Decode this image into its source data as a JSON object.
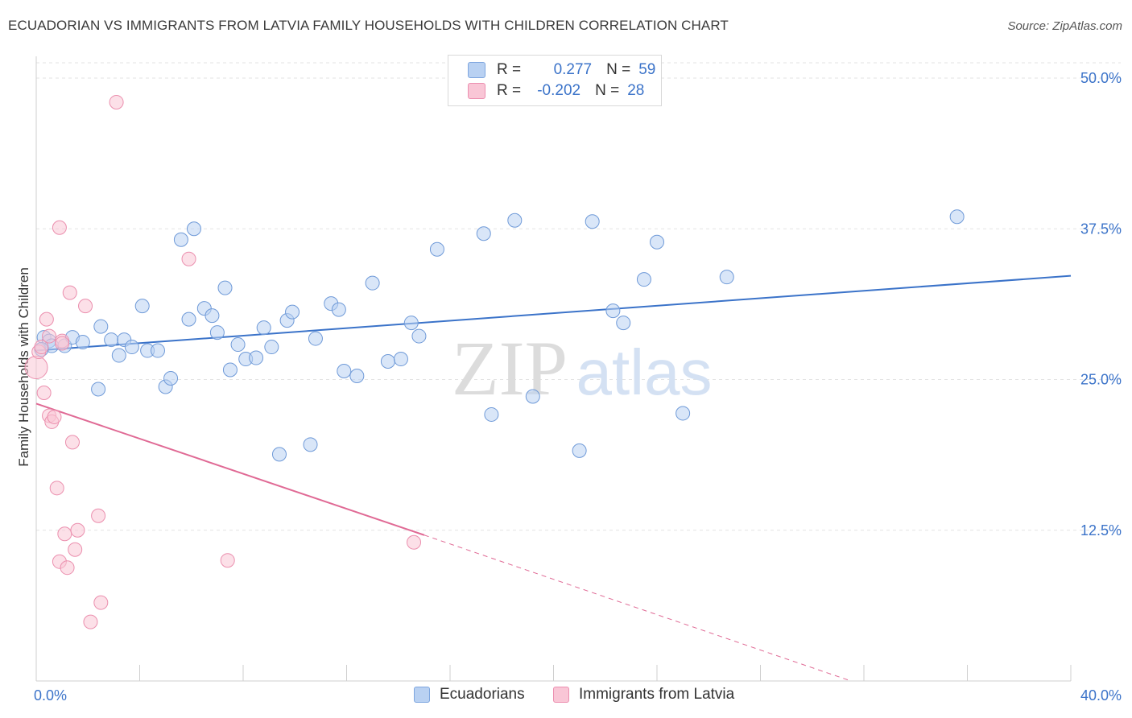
{
  "header": {
    "title": "ECUADORIAN VS IMMIGRANTS FROM LATVIA FAMILY HOUSEHOLDS WITH CHILDREN CORRELATION CHART",
    "source": "Source: ZipAtlas.com"
  },
  "watermark": {
    "zip": "ZIP",
    "atlas": "atlas"
  },
  "legend": {
    "rows": [
      {
        "r_label": "R =",
        "r_value": "0.277",
        "n_label": "N =",
        "n_value": "59",
        "color": "#b9d1f2",
        "border": "#7ea6df"
      },
      {
        "r_label": "R =",
        "r_value": "-0.202",
        "n_label": "N =",
        "n_value": "28",
        "color": "#f9c6d6",
        "border": "#ec8fb0"
      }
    ]
  },
  "bottom_legend": {
    "items": [
      {
        "label": "Ecuadorians",
        "color": "#b9d1f2",
        "border": "#7ea6df"
      },
      {
        "label": "Immigrants from Latvia",
        "color": "#f9c6d6",
        "border": "#ec8fb0"
      }
    ]
  },
  "chart_data": {
    "type": "scatter",
    "ylabel": "Family Households with Children",
    "xlim": [
      0,
      40
    ],
    "ylim": [
      0,
      50
    ],
    "x_ticks": [
      {
        "value": 0,
        "label": "0.0%"
      },
      {
        "value": 40,
        "label": "40.0%"
      }
    ],
    "y_ticks": [
      {
        "value": 12.5,
        "label": "12.5%"
      },
      {
        "value": 25,
        "label": "25.0%"
      },
      {
        "value": 37.5,
        "label": "37.5%"
      },
      {
        "value": 50,
        "label": "50.0%"
      }
    ],
    "grid": true,
    "series": [
      {
        "name": "Ecuadorians",
        "color": "#b9d1f2",
        "stroke": "#6f9ad8",
        "line_color": "#3b73c9",
        "trend": {
          "x0": 0,
          "y0": 27.4,
          "x1": 40,
          "y1": 33.6
        },
        "points": [
          [
            0.3,
            28.5
          ],
          [
            0.5,
            28.2
          ],
          [
            0.6,
            27.8
          ],
          [
            1.1,
            27.8
          ],
          [
            1.4,
            28.5
          ],
          [
            1.8,
            28.1
          ],
          [
            2.4,
            24.2
          ],
          [
            2.5,
            29.4
          ],
          [
            2.9,
            28.3
          ],
          [
            3.2,
            27.0
          ],
          [
            3.4,
            28.3
          ],
          [
            3.7,
            27.7
          ],
          [
            4.1,
            31.1
          ],
          [
            4.3,
            27.4
          ],
          [
            4.7,
            27.4
          ],
          [
            5.0,
            24.4
          ],
          [
            5.2,
            25.1
          ],
          [
            5.6,
            36.6
          ],
          [
            5.9,
            30.0
          ],
          [
            6.1,
            37.5
          ],
          [
            6.5,
            30.9
          ],
          [
            6.8,
            30.3
          ],
          [
            7.0,
            28.9
          ],
          [
            7.3,
            32.6
          ],
          [
            7.5,
            25.8
          ],
          [
            7.8,
            27.9
          ],
          [
            8.1,
            26.7
          ],
          [
            8.5,
            26.8
          ],
          [
            8.8,
            29.3
          ],
          [
            9.1,
            27.7
          ],
          [
            9.4,
            18.8
          ],
          [
            9.7,
            29.9
          ],
          [
            9.9,
            30.6
          ],
          [
            10.6,
            19.6
          ],
          [
            10.8,
            28.4
          ],
          [
            11.4,
            31.3
          ],
          [
            11.7,
            30.8
          ],
          [
            11.9,
            25.7
          ],
          [
            12.4,
            25.3
          ],
          [
            13.0,
            33.0
          ],
          [
            13.6,
            26.5
          ],
          [
            14.1,
            26.7
          ],
          [
            14.5,
            29.7
          ],
          [
            14.8,
            28.6
          ],
          [
            15.5,
            35.8
          ],
          [
            17.3,
            37.1
          ],
          [
            17.6,
            22.1
          ],
          [
            18.5,
            38.2
          ],
          [
            19.2,
            23.6
          ],
          [
            21.0,
            19.1
          ],
          [
            21.5,
            38.1
          ],
          [
            22.3,
            30.7
          ],
          [
            22.7,
            29.7
          ],
          [
            23.5,
            33.3
          ],
          [
            24.0,
            36.4
          ],
          [
            25.0,
            22.2
          ],
          [
            26.7,
            33.5
          ],
          [
            35.6,
            38.5
          ],
          [
            0.2,
            27.5
          ]
        ]
      },
      {
        "name": "Immigrants from Latvia",
        "color": "#f9c6d6",
        "stroke": "#eb8fae",
        "line_color": "#e06a95",
        "trend": {
          "x0": 0,
          "y0": 23.0,
          "x1": 15.0,
          "y1": 12.1
        },
        "trend_dashed": {
          "x0": 15.0,
          "y0": 12.1,
          "x1": 31.5,
          "y1": 0.0
        },
        "points": [
          [
            0.0,
            26.0
          ],
          [
            0.1,
            27.3
          ],
          [
            0.2,
            27.7
          ],
          [
            0.3,
            23.9
          ],
          [
            0.4,
            30.0
          ],
          [
            0.5,
            28.6
          ],
          [
            0.5,
            22.0
          ],
          [
            0.6,
            21.5
          ],
          [
            0.7,
            21.9
          ],
          [
            0.8,
            16.0
          ],
          [
            0.9,
            37.6
          ],
          [
            0.9,
            9.9
          ],
          [
            1.0,
            28.2
          ],
          [
            1.1,
            12.2
          ],
          [
            1.2,
            9.4
          ],
          [
            1.3,
            32.2
          ],
          [
            1.4,
            19.8
          ],
          [
            1.5,
            10.9
          ],
          [
            1.6,
            12.5
          ],
          [
            1.9,
            31.1
          ],
          [
            2.1,
            4.9
          ],
          [
            2.4,
            13.7
          ],
          [
            2.5,
            6.5
          ],
          [
            3.1,
            48.0
          ],
          [
            5.9,
            35.0
          ],
          [
            7.4,
            10.0
          ],
          [
            14.6,
            11.5
          ],
          [
            1.0,
            28.0
          ]
        ]
      }
    ]
  }
}
